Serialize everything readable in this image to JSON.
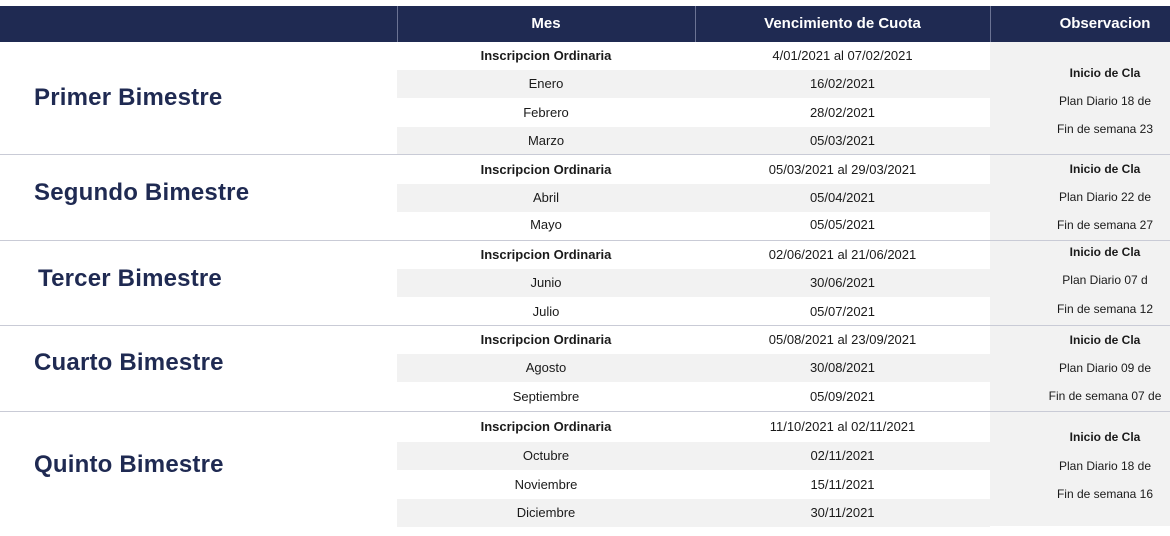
{
  "header": {
    "col_mes": "Mes",
    "col_vencimiento": "Vencimiento de Cuota",
    "col_observaciones": "Observacion"
  },
  "groups": [
    {
      "name": "Primer Bimestre",
      "rows": [
        {
          "mes": "Inscripcion Ordinaria",
          "vencimiento": "4/01/2021 al 07/02/2021"
        },
        {
          "mes": "Enero",
          "vencimiento": "16/02/2021"
        },
        {
          "mes": "Febrero",
          "vencimiento": "28/02/2021"
        },
        {
          "mes": "Marzo",
          "vencimiento": "05/03/2021"
        }
      ],
      "observaciones": [
        "Inicio de Cla",
        "Plan Diario 18 de",
        "Fin de semana 23"
      ]
    },
    {
      "name": "Segundo Bimestre",
      "rows": [
        {
          "mes": "Inscripcion Ordinaria",
          "vencimiento": "05/03/2021 al 29/03/2021"
        },
        {
          "mes": "Abril",
          "vencimiento": "05/04/2021"
        },
        {
          "mes": "Mayo",
          "vencimiento": "05/05/2021"
        }
      ],
      "observaciones": [
        "Inicio de Cla",
        "Plan Diario 22 de",
        "Fin de semana 27"
      ]
    },
    {
      "name": "Tercer Bimestre",
      "rows": [
        {
          "mes": "Inscripcion Ordinaria",
          "vencimiento": "02/06/2021 al 21/06/2021"
        },
        {
          "mes": "Junio",
          "vencimiento": "30/06/2021"
        },
        {
          "mes": "Julio",
          "vencimiento": "05/07/2021"
        }
      ],
      "observaciones": [
        "Inicio de Cla",
        "Plan Diario 07 d",
        "Fin de semana 12"
      ]
    },
    {
      "name": "Cuarto Bimestre",
      "rows": [
        {
          "mes": "Inscripcion Ordinaria",
          "vencimiento": "05/08/2021 al 23/09/2021"
        },
        {
          "mes": "Agosto",
          "vencimiento": "30/08/2021"
        },
        {
          "mes": "Septiembre",
          "vencimiento": "05/09/2021"
        }
      ],
      "observaciones": [
        "Inicio de Cla",
        "Plan Diario 09 de",
        "Fin de semana 07 de"
      ]
    },
    {
      "name": "Quinto Bimestre",
      "rows": [
        {
          "mes": "Inscripcion Ordinaria",
          "vencimiento": "11/10/2021 al 02/11/2021"
        },
        {
          "mes": "Octubre",
          "vencimiento": "02/11/2021"
        },
        {
          "mes": "Noviembre",
          "vencimiento": "15/11/2021"
        },
        {
          "mes": "Diciembre",
          "vencimiento": "30/11/2021"
        }
      ],
      "observaciones": [
        "Inicio de Cla",
        "Plan Diario 18 de",
        "Fin de semana 16"
      ]
    }
  ]
}
